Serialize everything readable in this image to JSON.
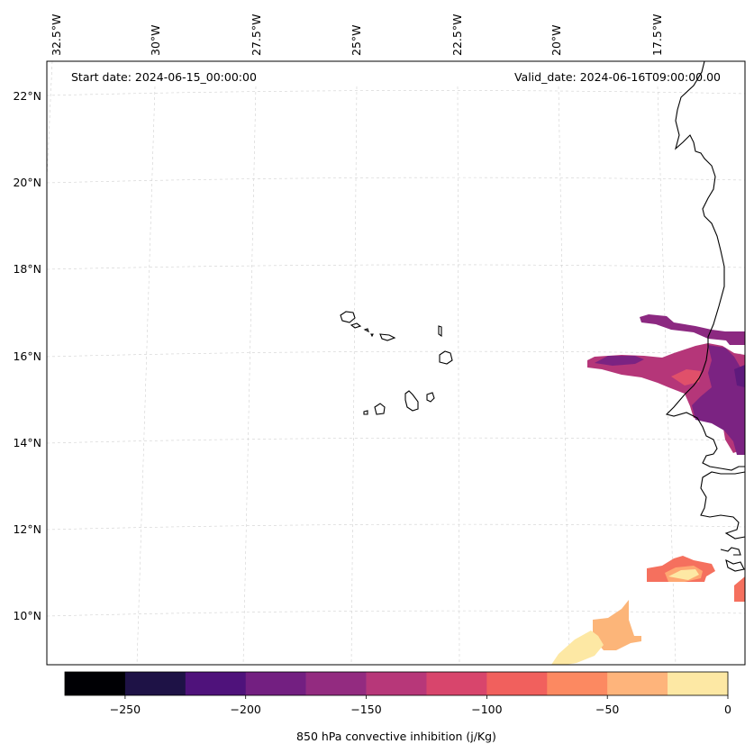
{
  "map": {
    "annotations": {
      "start_date": "Start date: 2024-06-15_00:00:00",
      "valid_date": "Valid_date: 2024-06-16T09:00:00.00"
    },
    "lon_labels": [
      "32.5°W",
      "30°W",
      "27.5°W",
      "25°W",
      "22.5°W",
      "20°W",
      "17.5°W"
    ],
    "lat_labels": [
      "22°N",
      "20°N",
      "18°N",
      "16°N",
      "14°N",
      "12°N",
      "10°N"
    ],
    "colors": {
      "coastline": "#000000",
      "gridline": "#cccccc",
      "frame": "#000000"
    }
  },
  "colorbar": {
    "label": "850 hPa convective inhibition (j/Kg)",
    "ticks": [
      "−250",
      "−200",
      "−150",
      "−100",
      "−50",
      "0"
    ],
    "colors": [
      "#000004",
      "#1e1246",
      "#4f127b",
      "#731f81",
      "#932b80",
      "#b73779",
      "#d8456c",
      "#f1605d",
      "#fc8961",
      "#feb47b",
      "#fde8a4"
    ],
    "value_min": -275,
    "value_max": 0
  }
}
